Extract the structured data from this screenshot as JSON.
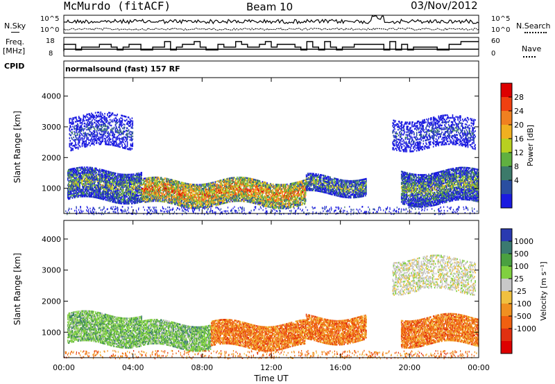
{
  "header": {
    "station": "McMurdo (fitACF)",
    "beam": "Beam 10",
    "date": "03/Nov/2012"
  },
  "top_panels": {
    "nsky_label": "N.Sky",
    "nsearch_label": "N.Search",
    "noise_ticks": [
      "10^5",
      "10^0"
    ],
    "freq_label_1": "Freq.",
    "freq_label_2": "[MHz]",
    "freq_ticks": [
      "18",
      "8"
    ],
    "nave_label": "Nave",
    "nave_ticks": [
      "60",
      "0"
    ],
    "cpid_label": "CPID",
    "cpid_text": "normalsound (fast) 157 RF"
  },
  "chart_data": [
    {
      "type": "heatmap",
      "name": "power",
      "ylabel": "Slant Range [km]",
      "xlabel": "",
      "ylim": [
        180,
        4600
      ],
      "yticks": [
        1000,
        2000,
        3000,
        4000
      ],
      "xlim": [
        0,
        24
      ],
      "colorbar": {
        "label": "Power [dB]",
        "ticks": [
          "28",
          "24",
          "20",
          "16",
          "12",
          "8",
          "4"
        ],
        "colors": [
          "#dd0000",
          "#f04010",
          "#f08020",
          "#f0b020",
          "#b8d020",
          "#60b040",
          "#3c7a6a",
          "#2a4ea0",
          "#1a1ae0"
        ]
      },
      "echo_bands": [
        {
          "t_start": 0.2,
          "t_end": 4.5,
          "range_low": 600,
          "range_high": 1600,
          "level": "medium"
        },
        {
          "t_start": 4.5,
          "t_end": 14.0,
          "range_low": 450,
          "range_high": 1250,
          "level": "high"
        },
        {
          "t_start": 14.0,
          "t_end": 17.5,
          "range_low": 800,
          "range_high": 1400,
          "level": "medium"
        },
        {
          "t_start": 19.5,
          "t_end": 24.0,
          "range_low": 500,
          "range_high": 1600,
          "level": "medium"
        },
        {
          "t_start": 19.0,
          "t_end": 23.8,
          "range_low": 2300,
          "range_high": 3300,
          "level": "low"
        },
        {
          "t_start": 0.3,
          "t_end": 4.0,
          "range_low": 2300,
          "range_high": 3400,
          "level": "low"
        }
      ]
    },
    {
      "type": "heatmap",
      "name": "velocity",
      "ylabel": "Slant Range [km]",
      "xlabel": "Time UT",
      "ylim": [
        180,
        4600
      ],
      "yticks": [
        1000,
        2000,
        3000,
        4000
      ],
      "xlim": [
        0,
        24
      ],
      "xticks": [
        "00:00",
        "04:00",
        "08:00",
        "12:00",
        "16:00",
        "20:00",
        "00:00"
      ],
      "colorbar": {
        "label": "Velocity [m s⁻¹]",
        "ticks": [
          "1000",
          "500",
          "100",
          "25",
          "-25",
          "-100",
          "-500",
          "-1000"
        ],
        "colors": [
          "#2a3ab0",
          "#3a7a70",
          "#4aa040",
          "#80d040",
          "#c8c8c8",
          "#f0c040",
          "#f09020",
          "#f06010",
          "#e03010",
          "#dd0000"
        ]
      },
      "echo_bands": [
        {
          "t_start": 0.2,
          "t_end": 4.5,
          "range_low": 600,
          "range_high": 1600,
          "velocity_class": "positive"
        },
        {
          "t_start": 4.5,
          "t_end": 8.5,
          "range_low": 500,
          "range_high": 1300,
          "velocity_class": "positive"
        },
        {
          "t_start": 8.5,
          "t_end": 14.0,
          "range_low": 500,
          "range_high": 1300,
          "velocity_class": "negative"
        },
        {
          "t_start": 14.0,
          "t_end": 17.5,
          "range_low": 700,
          "range_high": 1500,
          "velocity_class": "negative"
        },
        {
          "t_start": 19.5,
          "t_end": 24.0,
          "range_low": 600,
          "range_high": 1500,
          "velocity_class": "negative"
        },
        {
          "t_start": 19.0,
          "t_end": 23.8,
          "range_low": 2300,
          "range_high": 3400,
          "velocity_class": "near-zero"
        }
      ]
    }
  ]
}
